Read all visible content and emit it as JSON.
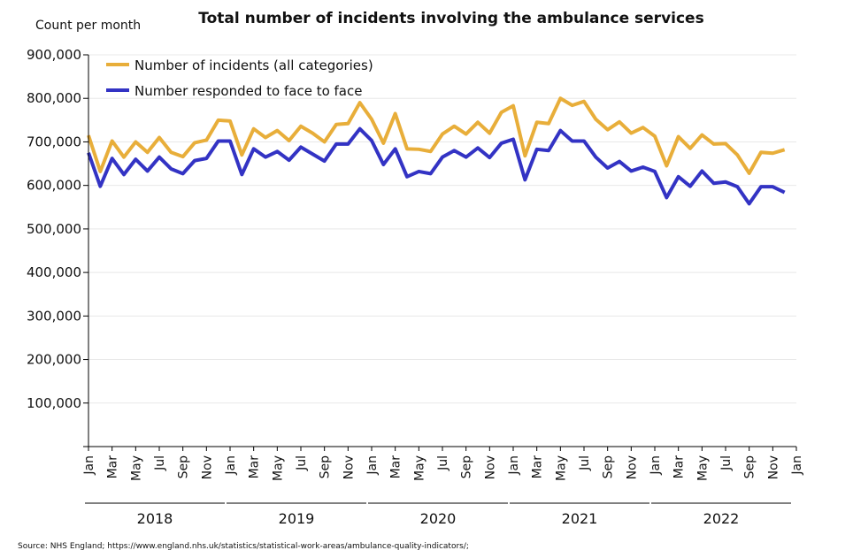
{
  "chart_data": {
    "type": "line",
    "title": "Total number of incidents involving the ambulance services",
    "ylabel": "Count per month",
    "ylim": [
      0,
      900000
    ],
    "yticks": [
      "",
      "100,000",
      "200,000",
      "300,000",
      "400,000",
      "500,000",
      "600,000",
      "700,000",
      "800,000",
      "900,000"
    ],
    "xtick_labels": [
      "Jan",
      "Mar",
      "May",
      "Jul",
      "Sep",
      "Nov",
      "Jan",
      "Mar",
      "May",
      "Jul",
      "Sep",
      "Nov",
      "Jan",
      "Mar",
      "May",
      "Jul",
      "Sep",
      "Nov",
      "Jan",
      "Mar",
      "May",
      "Jul",
      "Sep",
      "Nov",
      "Jan",
      "Mar",
      "May",
      "Jul",
      "Sep",
      "Nov",
      "Jan"
    ],
    "years": [
      "2018",
      "2019",
      "2020",
      "2021",
      "2022"
    ],
    "x_start": "2018-01",
    "grid": true,
    "legend_position": "top-left",
    "series": [
      {
        "name": "Number of incidents (all categories)",
        "color": "#E8AE3A",
        "values": [
          715000,
          632000,
          702000,
          665000,
          700000,
          676000,
          710000,
          676000,
          666000,
          698000,
          704000,
          750000,
          748000,
          670000,
          730000,
          710000,
          726000,
          703000,
          736000,
          720000,
          700000,
          740000,
          742000,
          790000,
          752000,
          697000,
          765000,
          684000,
          683000,
          678000,
          718000,
          736000,
          718000,
          745000,
          720000,
          768000,
          783000,
          668000,
          745000,
          742000,
          800000,
          784000,
          793000,
          752000,
          728000,
          746000,
          720000,
          733000,
          713000,
          645000,
          712000,
          685000,
          716000,
          695000,
          696000,
          670000,
          628000,
          676000,
          674000,
          682000
        ]
      },
      {
        "name": "Number responded to face to face",
        "color": "#3333C4",
        "values": [
          675000,
          598000,
          662000,
          625000,
          660000,
          633000,
          665000,
          638000,
          627000,
          657000,
          662000,
          702000,
          702000,
          625000,
          684000,
          665000,
          678000,
          658000,
          688000,
          672000,
          656000,
          695000,
          695000,
          730000,
          703000,
          648000,
          684000,
          620000,
          632000,
          627000,
          665000,
          680000,
          665000,
          686000,
          664000,
          697000,
          706000,
          613000,
          683000,
          680000,
          726000,
          702000,
          702000,
          665000,
          640000,
          655000,
          633000,
          642000,
          632000,
          572000,
          620000,
          598000,
          633000,
          605000,
          608000,
          597000,
          558000,
          597000,
          597000,
          584000
        ]
      }
    ],
    "source": "Source: NHS England; https://www.england.nhs.uk/statistics/statistical-work-areas/ambulance-quality-indicators/;"
  }
}
